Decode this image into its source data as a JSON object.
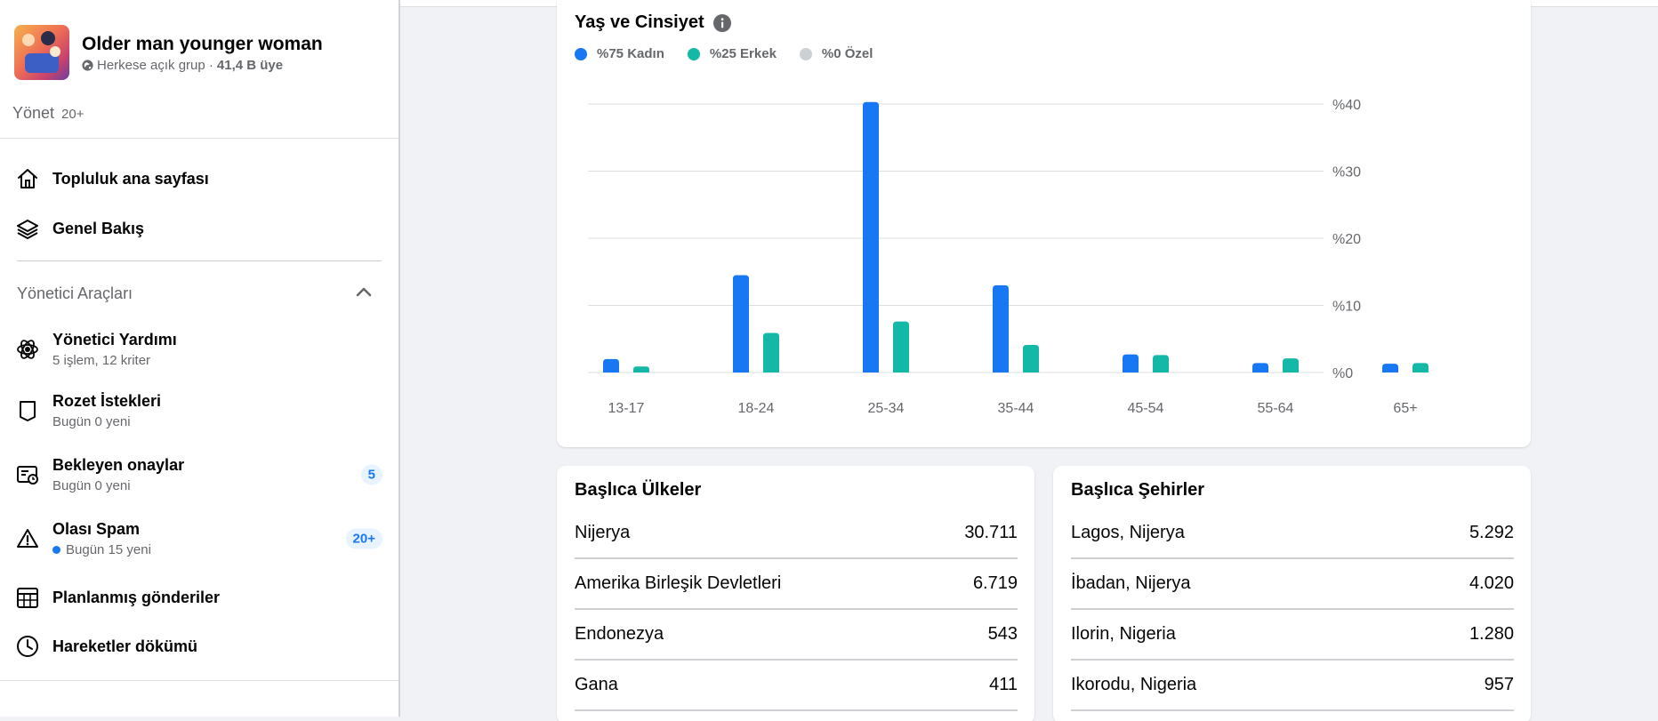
{
  "group": {
    "name": "Older man younger woman",
    "privacy": "Herkese açık grup ·",
    "members": "41,4 B üye"
  },
  "manage": {
    "label": "Yönet",
    "count": "20+"
  },
  "nav": {
    "community_home": "Topluluk ana sayfası",
    "overview": "Genel Bakış"
  },
  "admin_tools": {
    "label": "Yönetici Araçları",
    "items": [
      {
        "label": "Yönetici Yardımı",
        "sub": "5 işlem, 12 kriter",
        "icon": "admin-assist-icon"
      },
      {
        "label": "Rozet İstekleri",
        "sub": "Bugün 0 yeni",
        "icon": "badge-icon"
      },
      {
        "label": "Bekleyen onaylar",
        "sub": "Bugün 0 yeni",
        "icon": "pending-approvals-icon",
        "badge": "5"
      },
      {
        "label": "Olası Spam",
        "sub": "Bugün 15 yeni",
        "icon": "warning-icon",
        "badge": "20+",
        "dot": true
      },
      {
        "label": "Planlanmış gönderiler",
        "icon": "calendar-icon"
      },
      {
        "label": "Hareketler dökümü",
        "icon": "clock-icon"
      }
    ]
  },
  "chart": {
    "title": "Yaş ve Cinsiyet",
    "legend": [
      {
        "label": "%75 Kadın",
        "color": "#1877f2"
      },
      {
        "label": "%25 Erkek",
        "color": "#14b8a6"
      },
      {
        "label": "%0 Özel",
        "color": "#ccd0d5"
      }
    ]
  },
  "chart_data": {
    "type": "bar",
    "title": "Yaş ve Cinsiyet",
    "categories": [
      "13-17",
      "18-24",
      "25-34",
      "35-44",
      "45-54",
      "55-64",
      "65+"
    ],
    "series": [
      {
        "name": "%75 Kadın",
        "color": "#1877f2",
        "values": [
          2,
          14.5,
          40.3,
          13,
          2.7,
          1.4,
          1.3
        ]
      },
      {
        "name": "%25 Erkek",
        "color": "#14b8a6",
        "values": [
          0.9,
          5.9,
          7.6,
          4.1,
          2.6,
          2.1,
          1.4
        ]
      },
      {
        "name": "%0 Özel",
        "color": "#ccd0d5",
        "values": [
          0,
          0,
          0,
          0,
          0,
          0,
          0
        ]
      }
    ],
    "yticks": [
      "%0",
      "%10",
      "%20",
      "%30",
      "%40"
    ],
    "ylim": [
      0,
      40
    ],
    "grid": true,
    "y_axis_side": "right"
  },
  "countries": {
    "title": "Başlıca Ülkeler",
    "rows": [
      {
        "name": "Nijerya",
        "value": "30.711"
      },
      {
        "name": "Amerika Birleşik Devletleri",
        "value": "6.719"
      },
      {
        "name": "Endonezya",
        "value": "543"
      },
      {
        "name": "Gana",
        "value": "411"
      }
    ]
  },
  "cities": {
    "title": "Başlıca Şehirler",
    "rows": [
      {
        "name": "Lagos, Nijerya",
        "value": "5.292"
      },
      {
        "name": "İbadan, Nijerya",
        "value": "4.020"
      },
      {
        "name": "Ilorin, Nigeria",
        "value": "1.280"
      },
      {
        "name": "Ikorodu, Nigeria",
        "value": "957"
      }
    ]
  }
}
